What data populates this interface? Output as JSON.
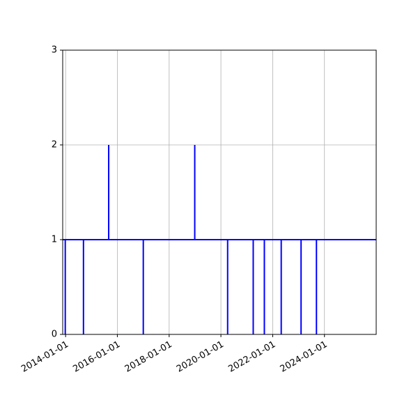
{
  "chart_data": {
    "type": "line",
    "title": "",
    "xlabel": "",
    "ylabel": "",
    "x_axis": {
      "scale": "date",
      "range": [
        "2013-11-21",
        "2025-12-31"
      ],
      "ticks": [
        "2014-01-01",
        "2016-01-01",
        "2018-01-01",
        "2020-01-01",
        "2022-01-01",
        "2024-01-01"
      ],
      "tick_labels": [
        "2014-01-01",
        "2016-01-01",
        "2018-01-01",
        "2020-01-01",
        "2022-01-01",
        "2024-01-01"
      ],
      "tick_label_rotation": 30
    },
    "y_axis": {
      "range": [
        0,
        3
      ],
      "ticks": [
        0,
        1,
        2,
        3
      ],
      "tick_labels": [
        "0",
        "1",
        "2",
        "3"
      ]
    },
    "grid": true,
    "legend": false,
    "series": [
      {
        "color": "#0000ff",
        "baseline": 1,
        "start": "2013-11-21",
        "end": "2025-12-31",
        "events": [
          {
            "date": "2013-12-27",
            "value": 0
          },
          {
            "date": "2014-09-10",
            "value": 0
          },
          {
            "date": "2015-09-01",
            "value": 2
          },
          {
            "date": "2017-01-01",
            "value": 0
          },
          {
            "date": "2018-12-28",
            "value": 2
          },
          {
            "date": "2020-04-05",
            "value": 0
          },
          {
            "date": "2021-04-01",
            "value": 0
          },
          {
            "date": "2021-09-05",
            "value": 0
          },
          {
            "date": "2022-05-01",
            "value": 0
          },
          {
            "date": "2023-02-05",
            "value": 0
          },
          {
            "date": "2023-09-10",
            "value": 0
          }
        ]
      }
    ]
  }
}
